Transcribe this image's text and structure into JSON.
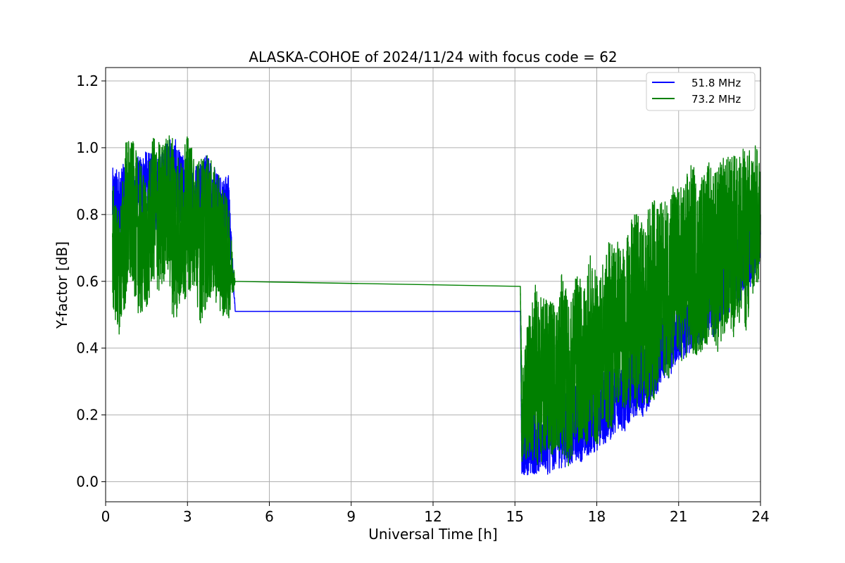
{
  "chart_data": {
    "type": "line",
    "title": "ALASKA-COHOE of 2024/11/24 with focus code = 62",
    "xlabel": "Universal Time [h]",
    "ylabel": "Y-factor [dB]",
    "xlim": [
      0,
      24
    ],
    "ylim": [
      -0.06,
      1.24
    ],
    "xticks": [
      0,
      3,
      6,
      9,
      12,
      15,
      18,
      21,
      24
    ],
    "xtick_labels": [
      "0",
      "3",
      "6",
      "9",
      "12",
      "15",
      "18",
      "21",
      "24"
    ],
    "yticks": [
      0.0,
      0.2,
      0.4,
      0.6,
      0.8,
      1.0,
      1.2
    ],
    "ytick_labels": [
      "0.0",
      "0.2",
      "0.4",
      "0.6",
      "0.8",
      "1.0",
      "1.2"
    ],
    "grid": true,
    "legend_position": "top-right",
    "series": [
      {
        "name": "51.8 MHz",
        "color": "#0000ff",
        "x": [
          0.25,
          0.5,
          0.75,
          1.0,
          1.25,
          1.5,
          1.75,
          2.0,
          2.25,
          2.5,
          2.75,
          3.0,
          3.25,
          3.5,
          3.75,
          4.0,
          4.25,
          4.5,
          4.75,
          15.2,
          15.25,
          15.5,
          15.75,
          16.0,
          16.25,
          16.5,
          16.75,
          17.0,
          17.25,
          17.5,
          17.75,
          18.0,
          18.25,
          18.5,
          18.75,
          19.0,
          19.25,
          19.5,
          19.75,
          20.0,
          20.25,
          20.5,
          20.75,
          21.0,
          21.25,
          21.5,
          21.75,
          22.0,
          22.25,
          22.5,
          22.75,
          23.0,
          23.25,
          23.5,
          23.75,
          24.0
        ],
        "y": [
          0.84,
          0.82,
          0.86,
          0.85,
          0.88,
          0.9,
          0.87,
          0.86,
          0.92,
          0.9,
          0.88,
          0.87,
          0.85,
          0.86,
          0.88,
          0.84,
          0.82,
          0.83,
          0.51,
          0.51,
          0.1,
          0.12,
          0.14,
          0.13,
          0.15,
          0.14,
          0.16,
          0.15,
          0.18,
          0.17,
          0.2,
          0.19,
          0.22,
          0.24,
          0.26,
          0.25,
          0.29,
          0.32,
          0.3,
          0.34,
          0.38,
          0.4,
          0.43,
          0.46,
          0.48,
          0.5,
          0.52,
          0.53,
          0.55,
          0.57,
          0.6,
          0.62,
          0.64,
          0.66,
          0.7,
          0.74
        ],
        "amplitude": [
          0.1,
          0.12,
          0.1,
          0.11,
          0.1,
          0.09,
          0.11,
          0.12,
          0.1,
          0.14,
          0.1,
          0.11,
          0.1,
          0.12,
          0.1,
          0.1,
          0.09,
          0.1,
          0.0,
          0.0,
          0.08,
          0.1,
          0.12,
          0.1,
          0.13,
          0.1,
          0.12,
          0.1,
          0.12,
          0.11,
          0.12,
          0.1,
          0.11,
          0.12,
          0.1,
          0.11,
          0.1,
          0.12,
          0.11,
          0.1,
          0.11,
          0.1,
          0.11,
          0.1,
          0.12,
          0.1,
          0.11,
          0.1,
          0.12,
          0.11,
          0.1,
          0.11,
          0.1,
          0.12,
          0.1,
          0.08
        ]
      },
      {
        "name": "73.2 MHz",
        "color": "#008000",
        "x": [
          0.25,
          0.5,
          0.75,
          1.0,
          1.25,
          1.5,
          1.75,
          2.0,
          2.25,
          2.5,
          2.75,
          3.0,
          3.25,
          3.5,
          3.75,
          4.0,
          4.25,
          4.5,
          4.75,
          15.2,
          15.25,
          15.5,
          15.75,
          16.0,
          16.25,
          16.5,
          16.75,
          17.0,
          17.25,
          17.5,
          17.75,
          18.0,
          18.25,
          18.5,
          18.75,
          19.0,
          19.25,
          19.5,
          19.75,
          20.0,
          20.25,
          20.5,
          20.75,
          21.0,
          21.25,
          21.5,
          21.75,
          22.0,
          22.25,
          22.5,
          22.75,
          23.0,
          23.25,
          23.5,
          23.75,
          24.0
        ],
        "y": [
          0.7,
          0.62,
          0.78,
          0.8,
          0.72,
          0.7,
          0.82,
          0.78,
          0.84,
          0.76,
          0.74,
          0.8,
          0.78,
          0.72,
          0.76,
          0.74,
          0.7,
          0.66,
          0.6,
          0.585,
          0.2,
          0.28,
          0.32,
          0.3,
          0.34,
          0.3,
          0.36,
          0.28,
          0.38,
          0.34,
          0.4,
          0.36,
          0.42,
          0.44,
          0.48,
          0.46,
          0.5,
          0.52,
          0.5,
          0.54,
          0.56,
          0.58,
          0.6,
          0.62,
          0.64,
          0.66,
          0.64,
          0.68,
          0.7,
          0.66,
          0.72,
          0.7,
          0.74,
          0.72,
          0.78,
          0.8
        ],
        "amplitude": [
          0.2,
          0.18,
          0.26,
          0.22,
          0.24,
          0.2,
          0.22,
          0.24,
          0.2,
          0.3,
          0.22,
          0.24,
          0.2,
          0.26,
          0.22,
          0.2,
          0.2,
          0.18,
          0.0,
          0.0,
          0.15,
          0.22,
          0.28,
          0.24,
          0.26,
          0.22,
          0.28,
          0.24,
          0.26,
          0.24,
          0.28,
          0.26,
          0.24,
          0.3,
          0.26,
          0.24,
          0.28,
          0.3,
          0.26,
          0.32,
          0.28,
          0.26,
          0.3,
          0.26,
          0.28,
          0.3,
          0.26,
          0.28,
          0.26,
          0.3,
          0.26,
          0.28,
          0.26,
          0.28,
          0.24,
          0.18
        ]
      }
    ]
  }
}
